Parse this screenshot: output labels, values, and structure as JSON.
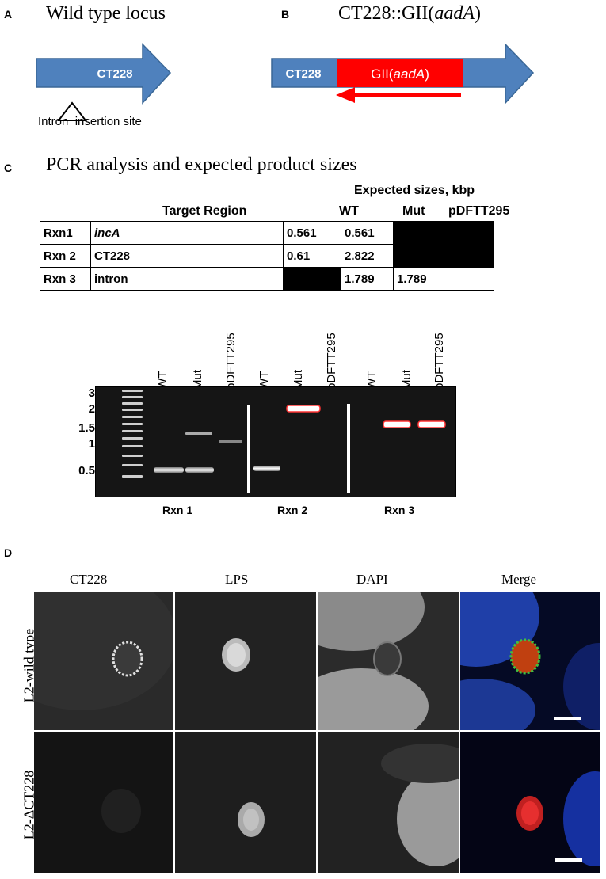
{
  "panelA": {
    "letter": "A",
    "title": "Wild type locus",
    "gene_label": "CT228",
    "site_label": "Intron  insertion site"
  },
  "panelB": {
    "letter": "B",
    "title_prefix": "CT228::GII(",
    "title_italic": "aadA",
    "title_suffix": ")",
    "gene_label": "CT228",
    "insert_prefix": "GII(",
    "insert_italic": "aadA",
    "insert_suffix": ")"
  },
  "panelC": {
    "letter": "C",
    "title": "PCR analysis and expected product sizes",
    "table": {
      "group_header": "Expected sizes, kbp",
      "target_header": "Target Region",
      "col_headers": [
        "WT",
        "Mut",
        "pDFTT295"
      ],
      "rows": [
        {
          "rxn": "Rxn1",
          "region": "incA",
          "region_italic": true,
          "wt": "0.561",
          "mut": "0.561",
          "pdf": ""
        },
        {
          "rxn": "Rxn 2",
          "region": "CT228",
          "region_italic": false,
          "wt": "0.61",
          "mut": "2.822",
          "pdf": ""
        },
        {
          "rxn": "Rxn 3",
          "region": "intron",
          "region_italic": false,
          "wt": "",
          "mut": "1.789",
          "pdf": "1.789"
        }
      ]
    },
    "gel": {
      "lane_labels": [
        "WT",
        "Mut",
        "pDFTT295",
        "WT",
        "Mut",
        "pDFTT295",
        "WT",
        "Mut",
        "pDFTT295"
      ],
      "ladder_labels": [
        "3",
        "2",
        "1.5",
        "1",
        "0.5"
      ],
      "rxn_labels": [
        "Rxn 1",
        "Rxn 2",
        "Rxn 3"
      ]
    }
  },
  "panelD": {
    "letter": "D",
    "col_labels": [
      "CT228",
      "LPS",
      "DAPI",
      "Merge"
    ],
    "row_labels": [
      "L2-wild type",
      "L2-ΔCT228"
    ]
  },
  "colors": {
    "arrow_blue": "#4f81bd",
    "insert_red": "#ff0000",
    "microscopy_bg": "#000000"
  }
}
